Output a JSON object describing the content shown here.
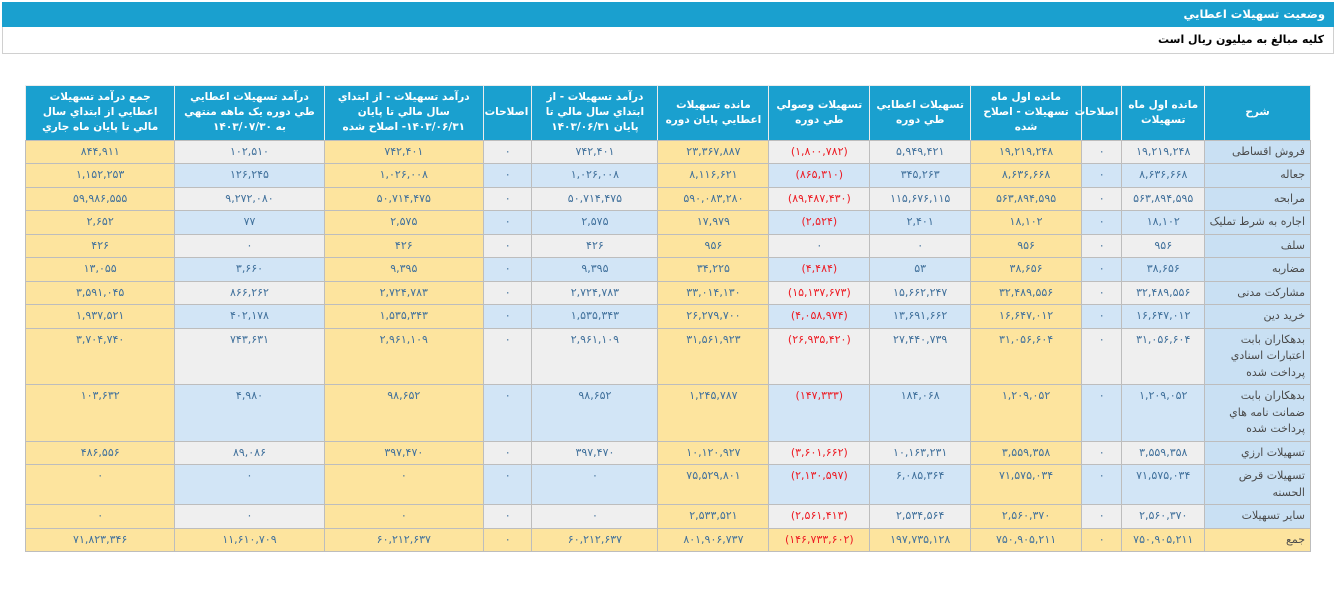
{
  "header": {
    "title": "وضعيت تسهيلات اعطايي",
    "units_note": "کليه مبالغ به ميليون ريال است"
  },
  "colors": {
    "teal_header": "#1aa0cf",
    "stripe_gray": "#efefef",
    "stripe_blue": "#d2e5f6",
    "highlight_yellow": "#fde49e",
    "description_column_blue": "#c9e0f3",
    "value_text_blue": "#41719c",
    "negative_text_red": "#ed1c24"
  },
  "table": {
    "columns": [
      {
        "label": "شرح"
      },
      {
        "label": "مانده اول ماه تسهيلات"
      },
      {
        "label": "اصلاحات"
      },
      {
        "label": "مانده اول ماه تسهيلات - اصلاح شده"
      },
      {
        "label": "تسهيلات اعطايي طي دوره"
      },
      {
        "label": "تسهيلات وصولي طي دوره"
      },
      {
        "label": "مانده تسهيلات اعطايي پايان دوره"
      },
      {
        "label": "درآمد تسهيلات - از ابتداي سال مالي تا پايان ۱۴۰۳/۰۶/۳۱"
      },
      {
        "label": "اصلاحات"
      },
      {
        "label": "درآمد تسهيلات - از ابتداي سال مالي تا پايان ۱۴۰۳/۰۶/۳۱- اصلاح شده"
      },
      {
        "label": "درآمد تسهيلات اعطايي طي دوره يک ماهه منتهي به ۱۴۰۳/۰۷/۳۰"
      },
      {
        "label": "جمع درآمد تسهيلات اعطايي از ابتداي سال مالي تا پايان ماه جاري"
      }
    ],
    "rows": [
      {
        "label": "فروش اقساطی",
        "values": [
          "۱۹,۲۱۹,۲۴۸",
          "۰",
          "۱۹,۲۱۹,۲۴۸",
          "۵,۹۴۹,۴۲۱",
          "(۱,۸۰۰,۷۸۲)",
          "۲۳,۳۶۷,۸۸۷",
          "۷۴۲,۴۰۱",
          "۰",
          "۷۴۲,۴۰۱",
          "۱۰۲,۵۱۰",
          "۸۴۴,۹۱۱"
        ]
      },
      {
        "label": "جعاله",
        "values": [
          "۸,۶۳۶,۶۶۸",
          "۰",
          "۸,۶۳۶,۶۶۸",
          "۳۴۵,۲۶۳",
          "(۸۶۵,۳۱۰)",
          "۸,۱۱۶,۶۲۱",
          "۱,۰۲۶,۰۰۸",
          "۰",
          "۱,۰۲۶,۰۰۸",
          "۱۲۶,۲۴۵",
          "۱,۱۵۲,۲۵۳"
        ]
      },
      {
        "label": "مرابحه",
        "values": [
          "۵۶۳,۸۹۴,۵۹۵",
          "۰",
          "۵۶۳,۸۹۴,۵۹۵",
          "۱۱۵,۶۷۶,۱۱۵",
          "(۸۹,۴۸۷,۴۳۰)",
          "۵۹۰,۰۸۳,۲۸۰",
          "۵۰,۷۱۴,۴۷۵",
          "۰",
          "۵۰,۷۱۴,۴۷۵",
          "۹,۲۷۲,۰۸۰",
          "۵۹,۹۸۶,۵۵۵"
        ]
      },
      {
        "label": "اجاره به شرط تملیک",
        "values": [
          "۱۸,۱۰۲",
          "۰",
          "۱۸,۱۰۲",
          "۲,۴۰۱",
          "(۲,۵۲۴)",
          "۱۷,۹۷۹",
          "۲,۵۷۵",
          "۰",
          "۲,۵۷۵",
          "۷۷",
          "۲,۶۵۲"
        ]
      },
      {
        "label": "سلف",
        "values": [
          "۹۵۶",
          "۰",
          "۹۵۶",
          "۰",
          "۰",
          "۹۵۶",
          "۴۲۶",
          "۰",
          "۴۲۶",
          "۰",
          "۴۲۶"
        ]
      },
      {
        "label": "مضاربه",
        "values": [
          "۳۸,۶۵۶",
          "۰",
          "۳۸,۶۵۶",
          "۵۳",
          "(۴,۴۸۴)",
          "۳۴,۲۲۵",
          "۹,۳۹۵",
          "۰",
          "۹,۳۹۵",
          "۳,۶۶۰",
          "۱۳,۰۵۵"
        ]
      },
      {
        "label": "مشارکت مدنی",
        "values": [
          "۳۲,۴۸۹,۵۵۶",
          "۰",
          "۳۲,۴۸۹,۵۵۶",
          "۱۵,۶۶۲,۲۴۷",
          "(۱۵,۱۳۷,۶۷۳)",
          "۳۳,۰۱۴,۱۳۰",
          "۲,۷۲۴,۷۸۳",
          "۰",
          "۲,۷۲۴,۷۸۳",
          "۸۶۶,۲۶۲",
          "۳,۵۹۱,۰۴۵"
        ]
      },
      {
        "label": "خرید دین",
        "values": [
          "۱۶,۶۴۷,۰۱۲",
          "۰",
          "۱۶,۶۴۷,۰۱۲",
          "۱۳,۶۹۱,۶۶۲",
          "(۴,۰۵۸,۹۷۴)",
          "۲۶,۲۷۹,۷۰۰",
          "۱,۵۳۵,۳۴۳",
          "۰",
          "۱,۵۳۵,۳۴۳",
          "۴۰۲,۱۷۸",
          "۱,۹۳۷,۵۲۱"
        ]
      },
      {
        "label": "بدهکاران بابت اعتبارات اسنادي پرداخت شده",
        "values": [
          "۳۱,۰۵۶,۶۰۴",
          "۰",
          "۳۱,۰۵۶,۶۰۴",
          "۲۷,۴۴۰,۷۳۹",
          "(۲۶,۹۳۵,۴۲۰)",
          "۳۱,۵۶۱,۹۲۳",
          "۲,۹۶۱,۱۰۹",
          "۰",
          "۲,۹۶۱,۱۰۹",
          "۷۴۳,۶۳۱",
          "۳,۷۰۴,۷۴۰"
        ]
      },
      {
        "label": "بدهکاران بابت ضمانت نامه هاي پرداخت شده",
        "values": [
          "۱,۲۰۹,۰۵۲",
          "۰",
          "۱,۲۰۹,۰۵۲",
          "۱۸۴,۰۶۸",
          "(۱۴۷,۳۳۳)",
          "۱,۲۴۵,۷۸۷",
          "۹۸,۶۵۲",
          "۰",
          "۹۸,۶۵۲",
          "۴,۹۸۰",
          "۱۰۳,۶۳۲"
        ]
      },
      {
        "label": "تسهيلات ارزي",
        "values": [
          "۳,۵۵۹,۳۵۸",
          "۰",
          "۳,۵۵۹,۳۵۸",
          "۱۰,۱۶۳,۲۳۱",
          "(۳,۶۰۱,۶۶۲)",
          "۱۰,۱۲۰,۹۲۷",
          "۳۹۷,۴۷۰",
          "۰",
          "۳۹۷,۴۷۰",
          "۸۹,۰۸۶",
          "۴۸۶,۵۵۶"
        ]
      },
      {
        "label": "تسهيلات قرض الحسنه",
        "values": [
          "۷۱,۵۷۵,۰۳۴",
          "۰",
          "۷۱,۵۷۵,۰۳۴",
          "۶,۰۸۵,۳۶۴",
          "(۲,۱۳۰,۵۹۷)",
          "۷۵,۵۲۹,۸۰۱",
          "۰",
          "۰",
          "۰",
          "۰",
          "۰"
        ]
      },
      {
        "label": "ساير تسهيلات",
        "values": [
          "۲,۵۶۰,۳۷۰",
          "۰",
          "۲,۵۶۰,۳۷۰",
          "۲,۵۳۴,۵۶۴",
          "(۲,۵۶۱,۴۱۳)",
          "۲,۵۳۳,۵۲۱",
          "۰",
          "۰",
          "۰",
          "۰",
          "۰"
        ]
      },
      {
        "label": "جمع",
        "is_total": true,
        "values": [
          "۷۵۰,۹۰۵,۲۱۱",
          "۰",
          "۷۵۰,۹۰۵,۲۱۱",
          "۱۹۷,۷۳۵,۱۲۸",
          "(۱۴۶,۷۳۳,۶۰۲)",
          "۸۰۱,۹۰۶,۷۳۷",
          "۶۰,۲۱۲,۶۳۷",
          "۰",
          "۶۰,۲۱۲,۶۳۷",
          "۱۱,۶۱۰,۷۰۹",
          "۷۱,۸۲۳,۳۴۶"
        ]
      }
    ]
  }
}
